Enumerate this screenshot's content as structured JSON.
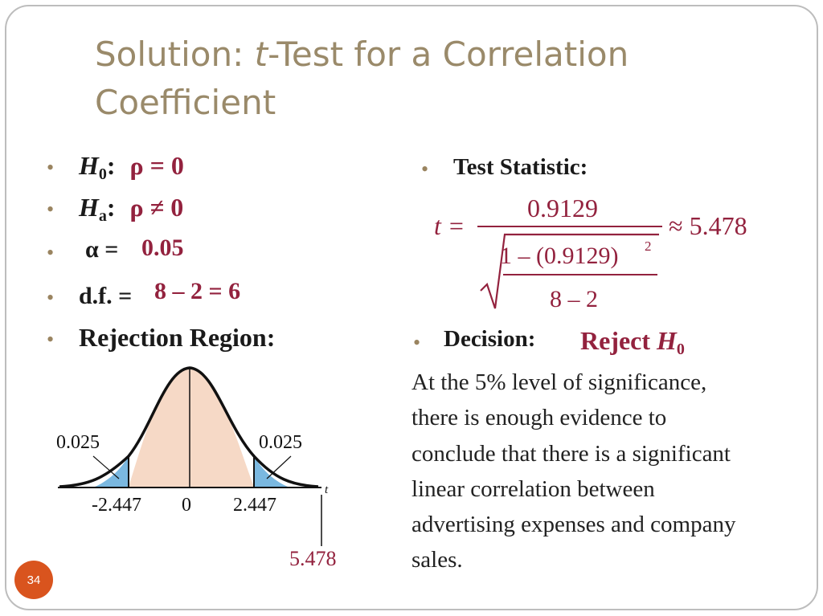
{
  "title": {
    "prefix": "Solution: ",
    "italic": "t",
    "line1_rest": "-Test for a Correlation",
    "line2": "Coefficient"
  },
  "left": {
    "h0_label": "H",
    "h0_sub": "0",
    "h0_value": "ρ = 0",
    "ha_label": "H",
    "ha_sub": "a",
    "ha_value": "ρ ≠ 0",
    "alpha_label": "α =",
    "alpha_value": "0.05",
    "df_label": "d.f. =",
    "df_value": "8 – 2 = 6",
    "rejection_label": "Rejection Region:"
  },
  "graph": {
    "left_area": "0.025",
    "right_area": "0.025",
    "tick_left": "-2.447",
    "tick_center": "0",
    "tick_right": "2.447",
    "axis_var": "t",
    "stat_marker": "5.478",
    "colors": {
      "body_fill": "#f6d9c6",
      "tail_fill": "#7ab8e0",
      "curve": "#111111",
      "stat_color": "#93223e"
    }
  },
  "right": {
    "test_statistic_label": "Test Statistic:",
    "formula": {
      "lhs": "t =",
      "numerator": "0.9129",
      "inner_numerator": "1 – (0.9129)",
      "inner_exponent": "2",
      "inner_denominator": "8 – 2",
      "result": "≈ 5.478"
    },
    "decision_label": "Decision:",
    "decision_value": "Reject",
    "decision_h": "H",
    "decision_sub": "0",
    "conclusion_lines": [
      "At the 5% level of significance,",
      "there is enough evidence to",
      "conclude that there is a significant",
      "linear correlation between",
      "advertising expenses and company",
      "sales."
    ]
  },
  "slide_number": "34",
  "accent": {
    "bullet": "#9a8460",
    "title": "#9a8a6a",
    "answer": "#93223e",
    "badge": "#d9541e"
  }
}
